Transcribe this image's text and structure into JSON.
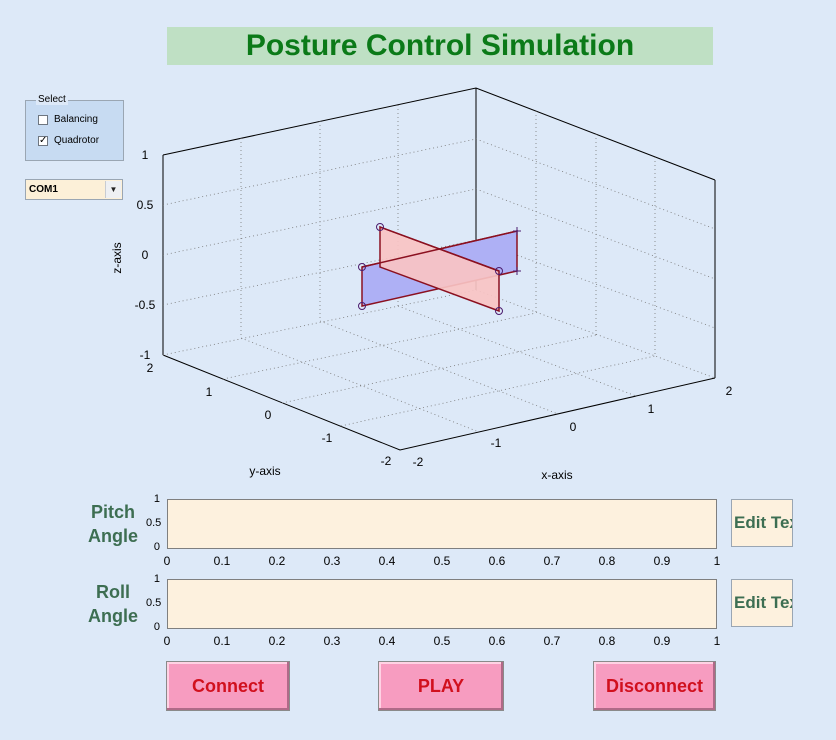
{
  "title": "Posture Control Simulation",
  "select_panel": {
    "legend": "Select",
    "options": [
      {
        "label": "Balancing",
        "checked": false
      },
      {
        "label": "Quadrotor",
        "checked": true
      }
    ]
  },
  "port_combo": {
    "value": "COM1"
  },
  "plot3d": {
    "xlabel": "x-axis",
    "ylabel": "y-axis",
    "zlabel": "z-axis",
    "z_ticks": [
      "1",
      "0.5",
      "0",
      "-0.5",
      "-1"
    ],
    "y_ticks": [
      "2",
      "1",
      "0",
      "-1",
      "-2"
    ],
    "x_ticks": [
      "-2",
      "-1",
      "0",
      "1",
      "2"
    ]
  },
  "pitch": {
    "label_line1": "Pitch",
    "label_line2": "Angle",
    "edit_text": "Edit Text",
    "y_ticks": [
      "1",
      "0.5",
      "0"
    ],
    "x_ticks": [
      "0",
      "0.1",
      "0.2",
      "0.3",
      "0.4",
      "0.5",
      "0.6",
      "0.7",
      "0.8",
      "0.9",
      "1"
    ]
  },
  "roll": {
    "label_line1": "Roll",
    "label_line2": "Angle",
    "edit_text": "Edit Text",
    "y_ticks": [
      "1",
      "0.5",
      "0"
    ],
    "x_ticks": [
      "0",
      "0.1",
      "0.2",
      "0.3",
      "0.4",
      "0.5",
      "0.6",
      "0.7",
      "0.8",
      "0.9",
      "1"
    ]
  },
  "buttons": {
    "connect": "Connect",
    "play": "PLAY",
    "disconnect": "Disconnect"
  },
  "colors": {
    "title_text": "#0b7a18",
    "title_bg": "#bfe0c4",
    "button_bg": "#f79cc0",
    "button_text": "#d1101e",
    "plate_pitch": "#f8c3c3",
    "plate_roll": "#aeb0f5"
  }
}
